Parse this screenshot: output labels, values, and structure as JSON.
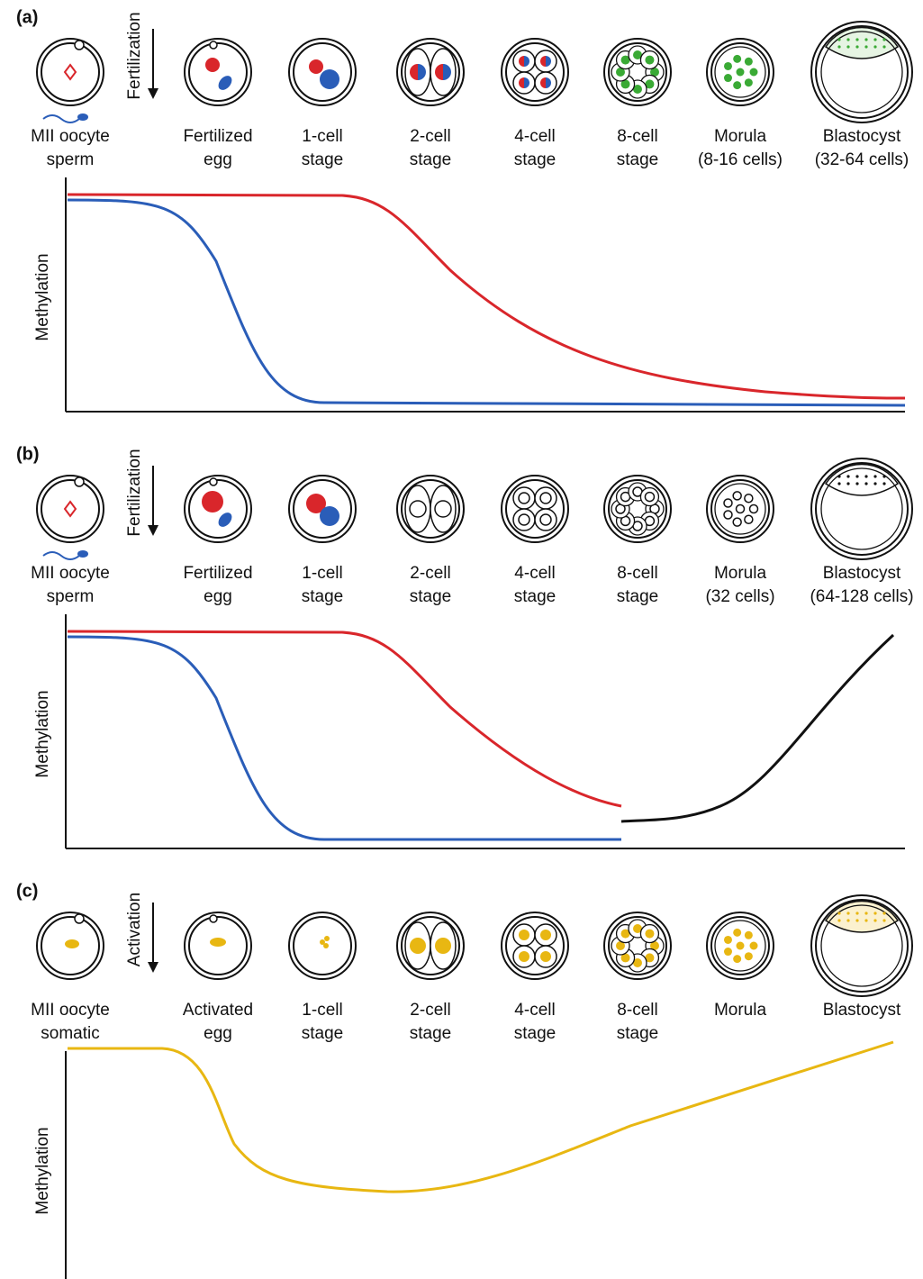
{
  "panels": [
    {
      "label": "(a)",
      "arrow_label": "Fertilization",
      "y_axis_label": "Methylation",
      "stages": [
        [
          "MII oocyte",
          "sperm"
        ],
        [
          "Fertilized",
          "egg"
        ],
        [
          "1-cell",
          "stage"
        ],
        [
          "2-cell",
          "stage"
        ],
        [
          "4-cell",
          "stage"
        ],
        [
          "8-cell",
          "stage"
        ],
        [
          "Morula",
          "(8-16 cells)"
        ],
        [
          "Blastocyst",
          "(32-64 cells)"
        ]
      ]
    },
    {
      "label": "(b)",
      "arrow_label": "Fertilization",
      "y_axis_label": "Methylation",
      "stages": [
        [
          "MII oocyte",
          "sperm"
        ],
        [
          "Fertilized",
          "egg"
        ],
        [
          "1-cell",
          "stage"
        ],
        [
          "2-cell",
          "stage"
        ],
        [
          "4-cell",
          "stage"
        ],
        [
          "8-cell",
          "stage"
        ],
        [
          "Morula",
          "(32 cells)"
        ],
        [
          "Blastocyst",
          "(64-128 cells)"
        ]
      ]
    },
    {
      "label": "(c)",
      "arrow_label": "Activation",
      "y_axis_label": "Methylation",
      "stages": [
        [
          "MII oocyte",
          "somatic"
        ],
        [
          "Activated",
          "egg"
        ],
        [
          "1-cell",
          "stage"
        ],
        [
          "2-cell",
          "stage"
        ],
        [
          "4-cell",
          "stage"
        ],
        [
          "8-cell",
          "stage"
        ],
        [
          "Morula"
        ],
        [
          "Blastocyst"
        ]
      ]
    }
  ]
}
